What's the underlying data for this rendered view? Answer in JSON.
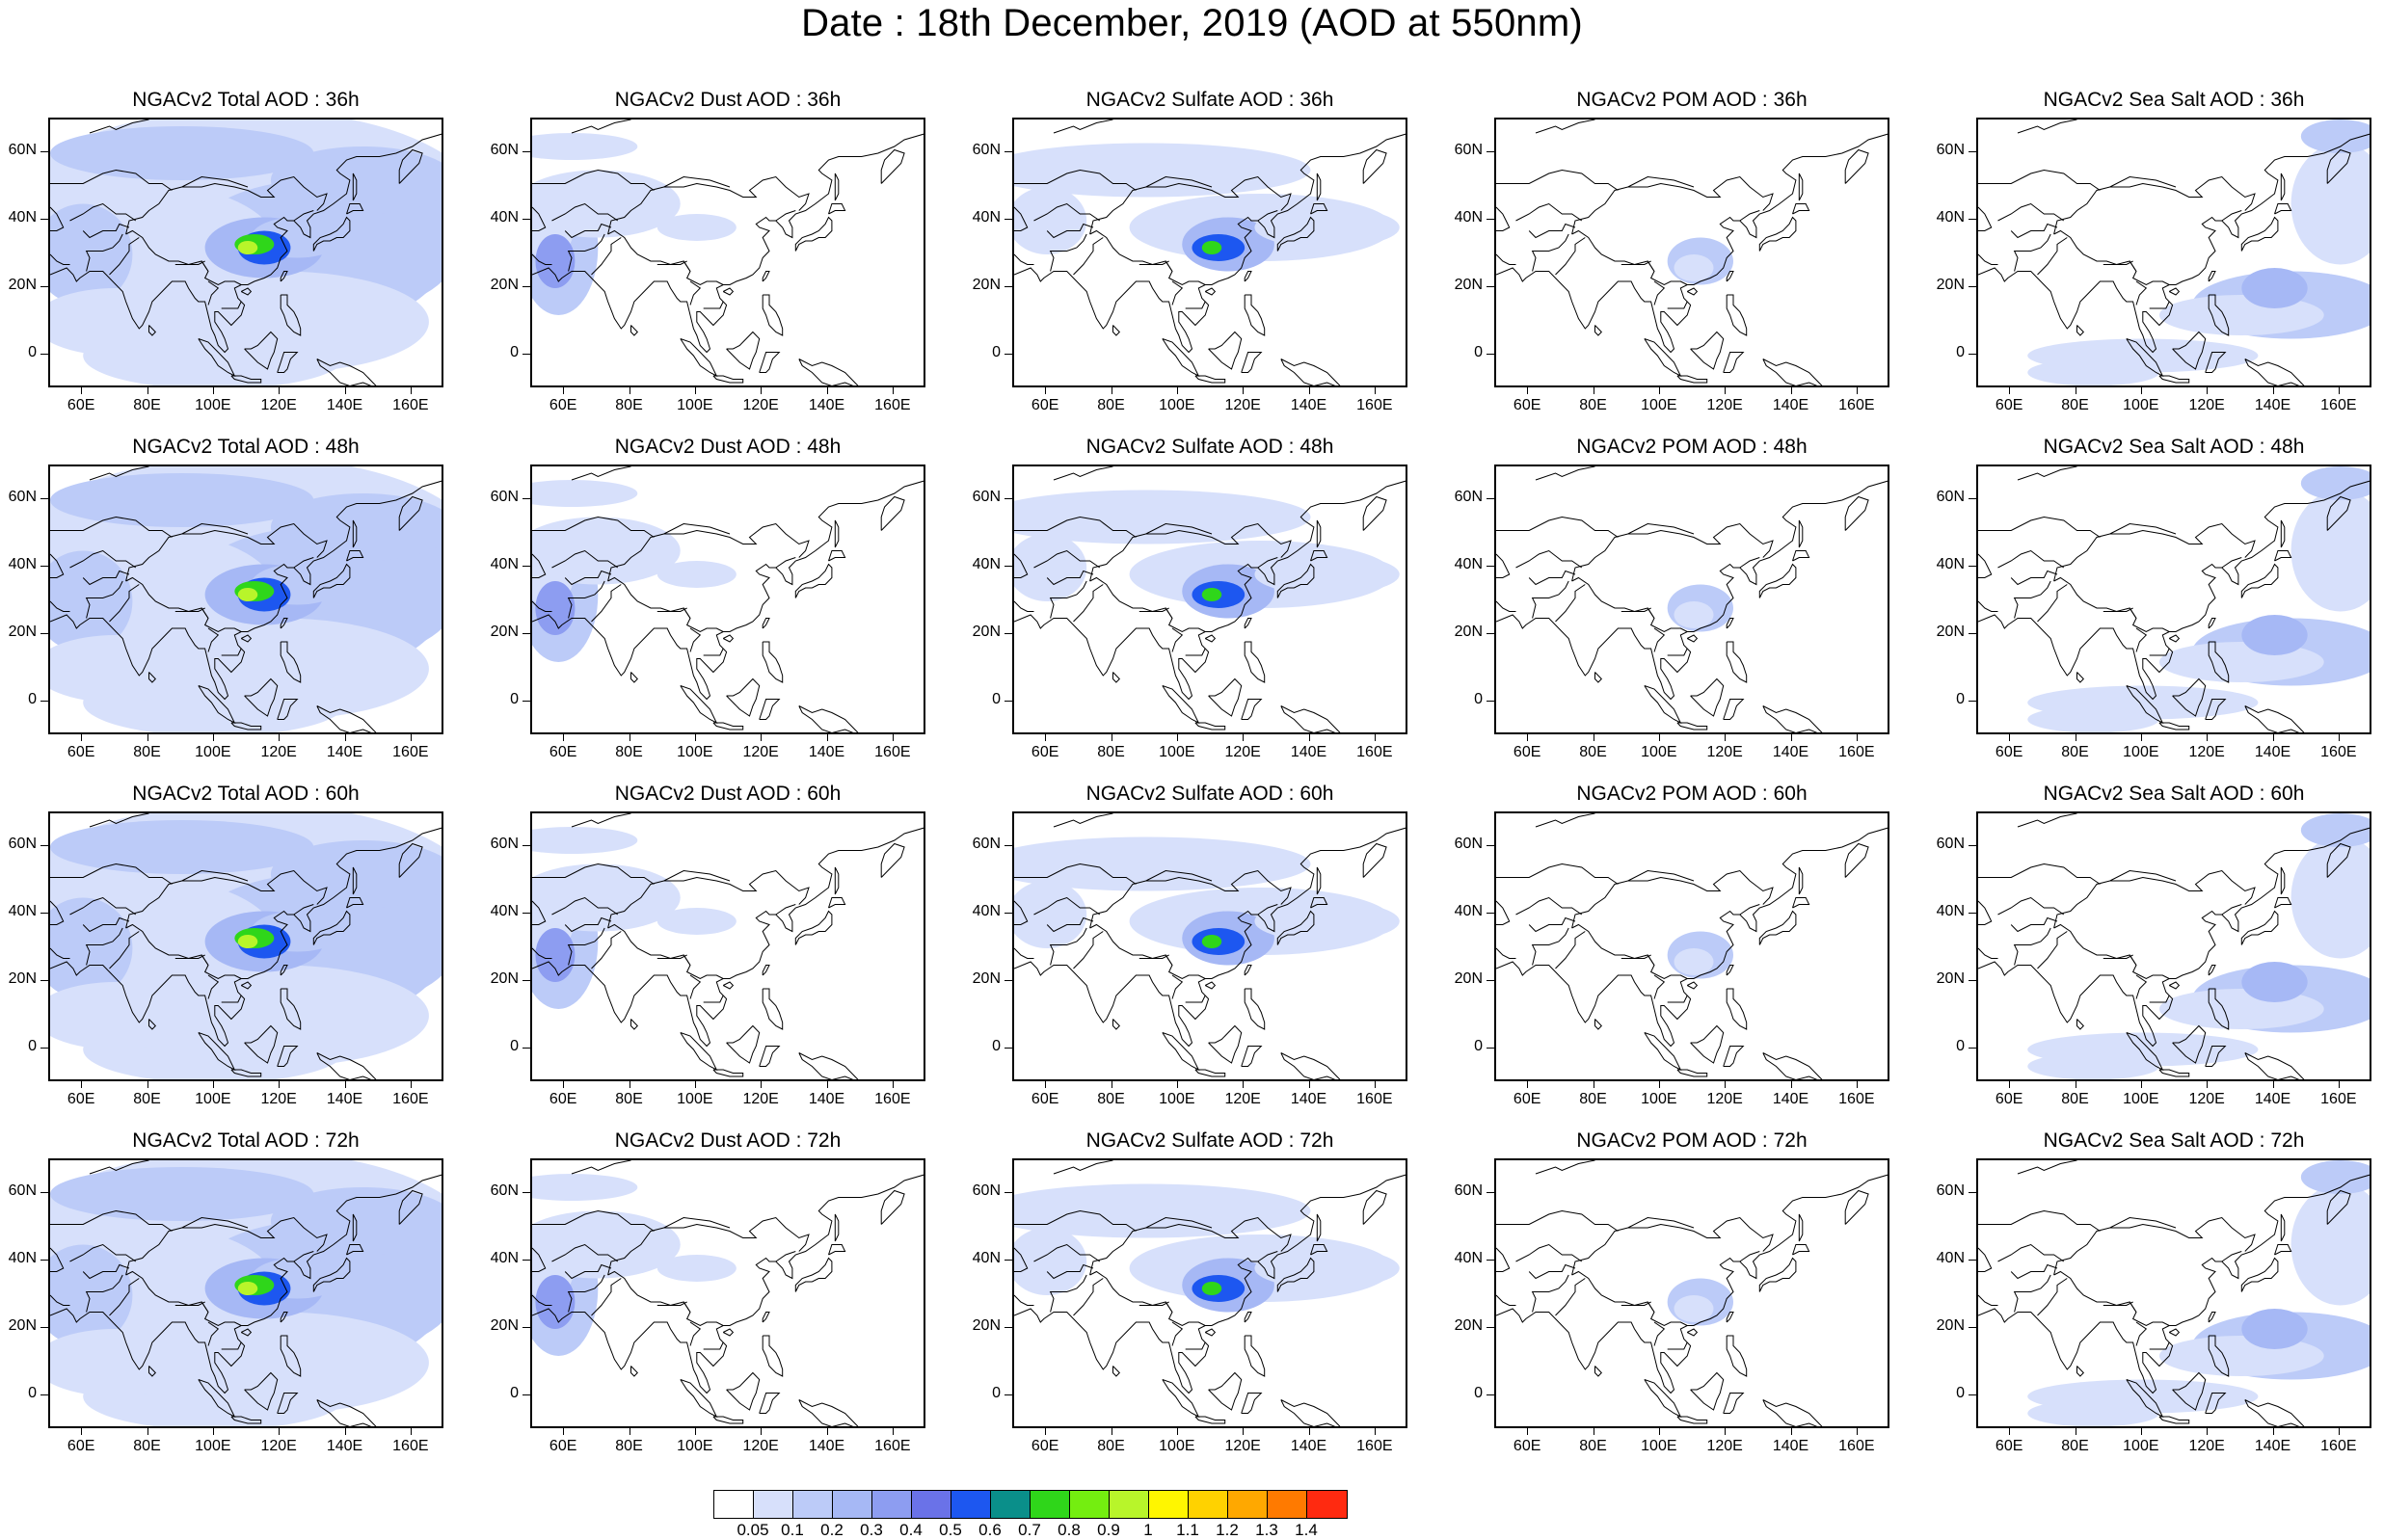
{
  "title": "Date : 18th December, 2019 (AOD at 550nm)",
  "panels": [
    {
      "title": "NGACv2 Total AOD : 36h",
      "species": "total",
      "hour": "36h"
    },
    {
      "title": "NGACv2 Dust AOD : 36h",
      "species": "dust",
      "hour": "36h"
    },
    {
      "title": "NGACv2 Sulfate AOD : 36h",
      "species": "sulfate",
      "hour": "36h"
    },
    {
      "title": "NGACv2 POM AOD : 36h",
      "species": "pom",
      "hour": "36h"
    },
    {
      "title": "NGACv2 Sea Salt AOD : 36h",
      "species": "seasalt",
      "hour": "36h"
    },
    {
      "title": "NGACv2 Total AOD : 48h",
      "species": "total",
      "hour": "48h"
    },
    {
      "title": "NGACv2 Dust AOD : 48h",
      "species": "dust",
      "hour": "48h"
    },
    {
      "title": "NGACv2 Sulfate AOD : 48h",
      "species": "sulfate",
      "hour": "48h"
    },
    {
      "title": "NGACv2 POM AOD : 48h",
      "species": "pom",
      "hour": "48h"
    },
    {
      "title": "NGACv2 Sea Salt AOD : 48h",
      "species": "seasalt",
      "hour": "48h"
    },
    {
      "title": "NGACv2 Total AOD : 60h",
      "species": "total",
      "hour": "60h"
    },
    {
      "title": "NGACv2 Dust AOD : 60h",
      "species": "dust",
      "hour": "60h"
    },
    {
      "title": "NGACv2 Sulfate AOD : 60h",
      "species": "sulfate",
      "hour": "60h"
    },
    {
      "title": "NGACv2 POM AOD : 60h",
      "species": "pom",
      "hour": "60h"
    },
    {
      "title": "NGACv2 Sea Salt AOD : 60h",
      "species": "seasalt",
      "hour": "60h"
    },
    {
      "title": "NGACv2 Total AOD : 72h",
      "species": "total",
      "hour": "72h"
    },
    {
      "title": "NGACv2 Dust AOD : 72h",
      "species": "dust",
      "hour": "72h"
    },
    {
      "title": "NGACv2 Sulfate AOD : 72h",
      "species": "sulfate",
      "hour": "72h"
    },
    {
      "title": "NGACv2 POM AOD : 72h",
      "species": "pom",
      "hour": "72h"
    },
    {
      "title": "NGACv2 Sea Salt  AOD : 72h",
      "species": "seasalt",
      "hour": "72h"
    }
  ],
  "map_extent": {
    "lon_min": 50,
    "lon_max": 170,
    "lat_min": -10,
    "lat_max": 70
  },
  "lat_ticks": [
    {
      "value": 60,
      "label": "60N"
    },
    {
      "value": 40,
      "label": "40N"
    },
    {
      "value": 20,
      "label": "20N"
    },
    {
      "value": 0,
      "label": "0"
    }
  ],
  "lon_ticks": [
    {
      "value": 60,
      "label": "60E"
    },
    {
      "value": 80,
      "label": "80E"
    },
    {
      "value": 100,
      "label": "100E"
    },
    {
      "value": 120,
      "label": "120E"
    },
    {
      "value": 140,
      "label": "140E"
    },
    {
      "value": 160,
      "label": "160E"
    }
  ],
  "colorbar": {
    "colors": [
      "#ffffff",
      "#d7e0fb",
      "#bccbf8",
      "#a6b8f5",
      "#8d9df1",
      "#6a72e8",
      "#1d57f0",
      "#0a8f8a",
      "#2fd61a",
      "#74ee10",
      "#b8f52a",
      "#fff600",
      "#ffd200",
      "#ffa800",
      "#ff7a00",
      "#ff2a10"
    ],
    "labels": [
      "0.05",
      "0.1",
      "0.2",
      "0.3",
      "0.4",
      "0.5",
      "0.6",
      "0.7",
      "0.8",
      "0.9",
      "1",
      "1.1",
      "1.2",
      "1.3",
      "1.4"
    ]
  }
}
